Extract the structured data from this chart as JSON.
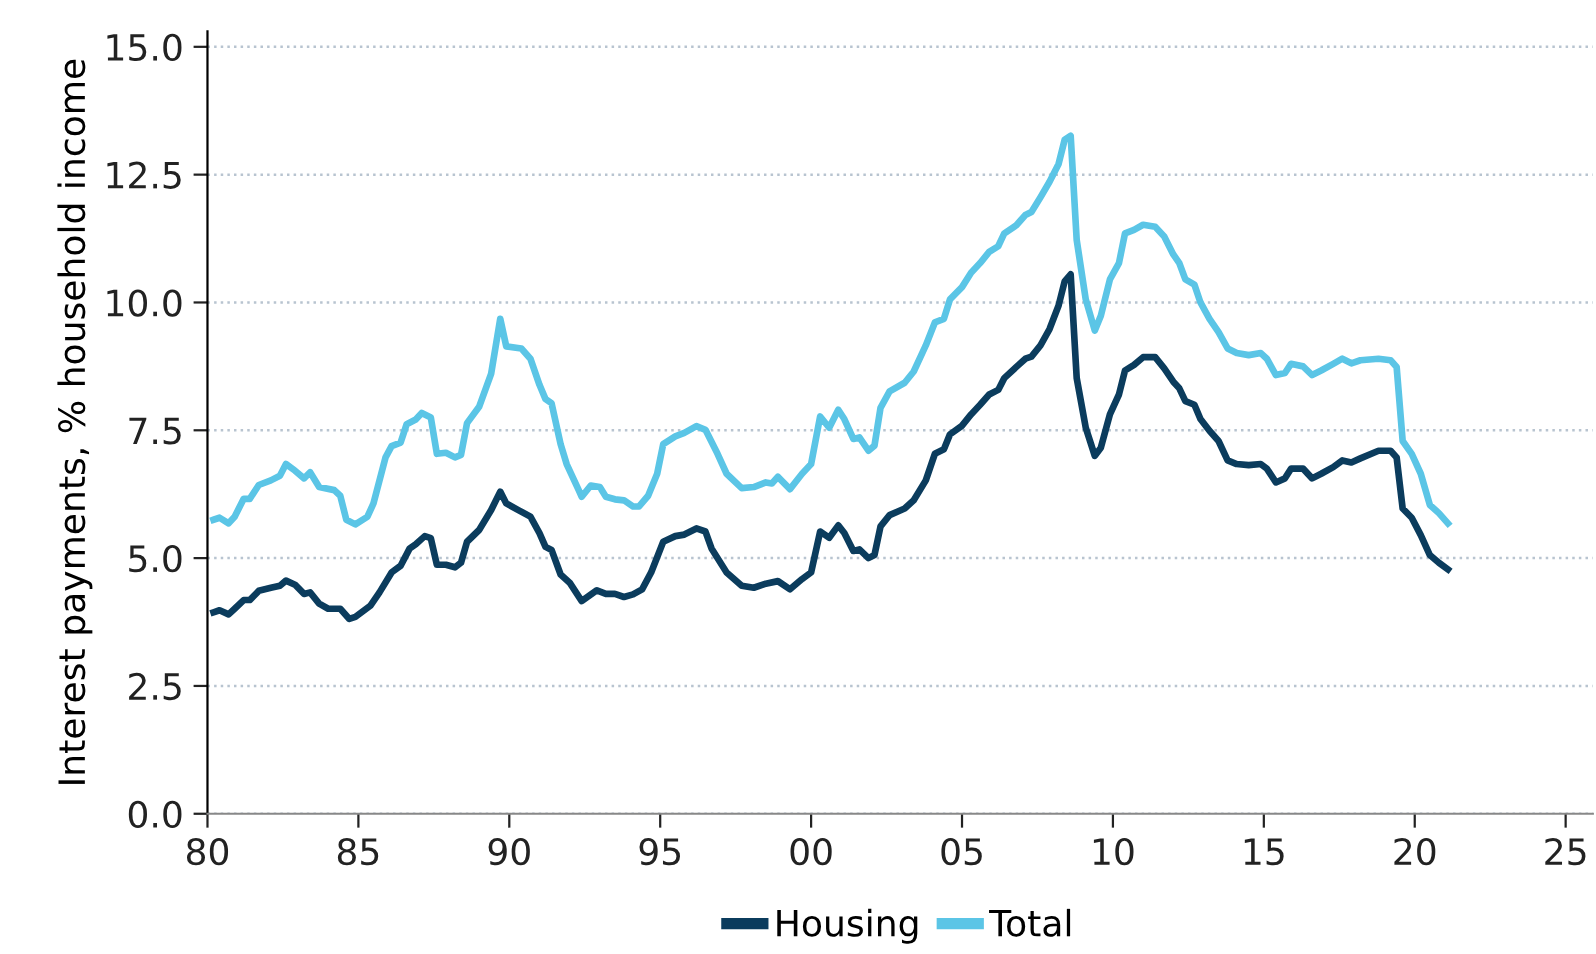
{
  "chart_data": {
    "type": "line",
    "ylabel": "Interest payments, % household income",
    "xlim": [
      1980,
      2025.9
    ],
    "ylim": [
      0,
      15.3
    ],
    "xticks": [
      {
        "value": 1980,
        "label": "80"
      },
      {
        "value": 1985,
        "label": "85"
      },
      {
        "value": 1990,
        "label": "90"
      },
      {
        "value": 1995,
        "label": "95"
      },
      {
        "value": 2000,
        "label": "00"
      },
      {
        "value": 2005,
        "label": "05"
      },
      {
        "value": 2010,
        "label": "10"
      },
      {
        "value": 2015,
        "label": "15"
      },
      {
        "value": 2020,
        "label": "20"
      },
      {
        "value": 2025,
        "label": "25"
      }
    ],
    "yticks": [
      {
        "value": 0,
        "label": "0.0"
      },
      {
        "value": 2.5,
        "label": "2.5"
      },
      {
        "value": 5,
        "label": "5.0"
      },
      {
        "value": 7.5,
        "label": "7.5"
      },
      {
        "value": 10,
        "label": "10.0"
      },
      {
        "value": 12.5,
        "label": "12.5"
      },
      {
        "value": 15,
        "label": "15.0"
      }
    ],
    "grid": "y",
    "legend": "bottom",
    "line_style": "solid",
    "marker": "none",
    "series": [
      {
        "name": "Housing",
        "color": "#0b3c5d",
        "x": [
          1980.2,
          1980.4,
          1980.7,
          1980.9,
          1981.2,
          1981.4,
          1981.7,
          1982.1,
          1982.4,
          1982.6,
          1982.9,
          1983.2,
          1983.4,
          1983.7,
          1984.0,
          1984.4,
          1984.7,
          1984.9,
          1985.4,
          1985.7,
          1986.1,
          1986.4,
          1986.7,
          1986.9,
          1987.2,
          1987.4,
          1987.6,
          1987.9,
          1988.2,
          1988.4,
          1988.6,
          1989.0,
          1989.4,
          1989.7,
          1989.9,
          1990.3,
          1990.7,
          1991.0,
          1991.2,
          1991.4,
          1991.7,
          1992.0,
          1992.4,
          1992.9,
          1993.2,
          1993.5,
          1993.8,
          1994.1,
          1994.4,
          1994.7,
          1995.1,
          1995.5,
          1995.8,
          1996.2,
          1996.5,
          1996.7,
          1997.2,
          1997.7,
          1998.1,
          1998.5,
          1998.9,
          1999.3,
          1999.7,
          2000.0,
          2000.3,
          2000.6,
          2000.9,
          2001.1,
          2001.4,
          2001.6,
          2001.9,
          2002.1,
          2002.3,
          2002.6,
          2003.1,
          2003.4,
          2003.8,
          2004.1,
          2004.4,
          2004.6,
          2005.0,
          2005.3,
          2005.6,
          2005.9,
          2006.2,
          2006.4,
          2006.8,
          2007.1,
          2007.3,
          2007.6,
          2007.9,
          2008.2,
          2008.4,
          2008.6,
          2008.8,
          2009.1,
          2009.4,
          2009.6,
          2009.9,
          2010.2,
          2010.4,
          2010.7,
          2011.0,
          2011.4,
          2011.7,
          2012.0,
          2012.2,
          2012.4,
          2012.7,
          2012.9,
          2013.2,
          2013.5,
          2013.8,
          2014.1,
          2014.5,
          2014.9,
          2015.1,
          2015.4,
          2015.7,
          2015.9,
          2016.3,
          2016.6,
          2016.9,
          2017.3,
          2017.6,
          2017.9,
          2018.2,
          2018.8,
          2019.2,
          2019.4,
          2019.6,
          2019.9,
          2020.2,
          2020.5,
          2020.8,
          2021.1
        ],
        "values": [
          3.94,
          3.98,
          3.9,
          4.01,
          4.18,
          4.18,
          4.36,
          4.42,
          4.46,
          4.56,
          4.48,
          4.3,
          4.33,
          4.11,
          4.01,
          4.01,
          3.81,
          3.85,
          4.07,
          4.33,
          4.72,
          4.85,
          5.19,
          5.27,
          5.43,
          5.39,
          4.87,
          4.87,
          4.82,
          4.91,
          5.32,
          5.55,
          5.94,
          6.3,
          6.07,
          5.94,
          5.81,
          5.49,
          5.22,
          5.16,
          4.68,
          4.52,
          4.16,
          4.37,
          4.3,
          4.3,
          4.24,
          4.29,
          4.39,
          4.72,
          5.32,
          5.43,
          5.46,
          5.58,
          5.52,
          5.19,
          4.72,
          4.46,
          4.42,
          4.5,
          4.55,
          4.39,
          4.59,
          4.72,
          5.52,
          5.4,
          5.64,
          5.49,
          5.14,
          5.17,
          5.0,
          5.06,
          5.62,
          5.84,
          5.97,
          6.13,
          6.52,
          7.04,
          7.13,
          7.42,
          7.59,
          7.81,
          8.0,
          8.2,
          8.29,
          8.52,
          8.74,
          8.9,
          8.94,
          9.16,
          9.48,
          9.94,
          10.41,
          10.55,
          8.52,
          7.55,
          7.0,
          7.16,
          7.81,
          8.2,
          8.67,
          8.78,
          8.93,
          8.93,
          8.71,
          8.45,
          8.32,
          8.07,
          8.0,
          7.72,
          7.49,
          7.29,
          6.91,
          6.84,
          6.82,
          6.84,
          6.75,
          6.48,
          6.56,
          6.75,
          6.75,
          6.56,
          6.65,
          6.78,
          6.91,
          6.87,
          6.95,
          7.1,
          7.1,
          6.97,
          5.97,
          5.79,
          5.45,
          5.06,
          4.91,
          4.78
        ]
      },
      {
        "name": "Total",
        "color": "#5bc5e6",
        "x": [
          1980.2,
          1980.4,
          1980.7,
          1980.9,
          1981.2,
          1981.4,
          1981.7,
          1982.1,
          1982.4,
          1982.6,
          1982.9,
          1983.2,
          1983.4,
          1983.7,
          1984.2,
          1984.4,
          1984.6,
          1984.9,
          1985.3,
          1985.5,
          1985.9,
          1986.1,
          1986.4,
          1986.6,
          1986.9,
          1987.1,
          1987.4,
          1987.6,
          1987.9,
          1988.2,
          1988.4,
          1988.6,
          1989.0,
          1989.4,
          1989.7,
          1989.9,
          1990.4,
          1990.7,
          1991.0,
          1991.2,
          1991.4,
          1991.7,
          1991.9,
          1992.3,
          1992.4,
          1992.7,
          1993.0,
          1993.2,
          1993.5,
          1993.8,
          1994.1,
          1994.3,
          1994.6,
          1994.9,
          1995.1,
          1995.5,
          1995.8,
          1996.2,
          1996.5,
          1996.9,
          1997.2,
          1997.7,
          1998.1,
          1998.5,
          1998.7,
          1998.9,
          1999.3,
          1999.7,
          2000.0,
          2000.3,
          2000.6,
          2000.9,
          2001.1,
          2001.4,
          2001.6,
          2001.9,
          2002.1,
          2002.3,
          2002.6,
          2003.1,
          2003.4,
          2003.8,
          2004.1,
          2004.4,
          2004.6,
          2005.0,
          2005.3,
          2005.6,
          2005.9,
          2006.2,
          2006.4,
          2006.8,
          2007.1,
          2007.3,
          2007.6,
          2007.9,
          2008.2,
          2008.4,
          2008.6,
          2008.8,
          2009.1,
          2009.4,
          2009.6,
          2009.9,
          2010.2,
          2010.4,
          2010.7,
          2011.0,
          2011.4,
          2011.7,
          2012.0,
          2012.2,
          2012.4,
          2012.7,
          2012.9,
          2013.2,
          2013.5,
          2013.8,
          2014.1,
          2014.5,
          2014.9,
          2015.1,
          2015.4,
          2015.7,
          2015.9,
          2016.3,
          2016.6,
          2016.9,
          2017.3,
          2017.6,
          2017.9,
          2018.2,
          2018.8,
          2019.2,
          2019.4,
          2019.6,
          2019.9,
          2020.2,
          2020.5,
          2020.8,
          2021.1
        ],
        "values": [
          5.75,
          5.79,
          5.68,
          5.81,
          6.16,
          6.16,
          6.43,
          6.52,
          6.61,
          6.84,
          6.71,
          6.56,
          6.68,
          6.39,
          6.33,
          6.22,
          5.75,
          5.66,
          5.81,
          6.07,
          6.97,
          7.19,
          7.26,
          7.62,
          7.71,
          7.84,
          7.75,
          7.04,
          7.06,
          6.97,
          7.02,
          7.64,
          7.96,
          8.61,
          9.68,
          9.14,
          9.1,
          8.9,
          8.39,
          8.11,
          8.03,
          7.23,
          6.84,
          6.33,
          6.2,
          6.42,
          6.39,
          6.2,
          6.15,
          6.13,
          6.01,
          6.01,
          6.22,
          6.65,
          7.23,
          7.38,
          7.45,
          7.58,
          7.51,
          7.04,
          6.65,
          6.37,
          6.39,
          6.48,
          6.46,
          6.59,
          6.35,
          6.65,
          6.84,
          7.77,
          7.55,
          7.9,
          7.72,
          7.33,
          7.36,
          7.1,
          7.2,
          7.94,
          8.26,
          8.43,
          8.65,
          9.16,
          9.61,
          9.68,
          10.06,
          10.3,
          10.58,
          10.77,
          10.99,
          11.1,
          11.35,
          11.51,
          11.71,
          11.77,
          12.06,
          12.36,
          12.71,
          13.18,
          13.26,
          11.22,
          10.06,
          9.45,
          9.74,
          10.45,
          10.77,
          11.35,
          11.42,
          11.52,
          11.48,
          11.29,
          10.94,
          10.77,
          10.45,
          10.35,
          10.0,
          9.68,
          9.42,
          9.1,
          9.01,
          8.97,
          9.01,
          8.9,
          8.58,
          8.62,
          8.8,
          8.75,
          8.58,
          8.67,
          8.8,
          8.9,
          8.81,
          8.87,
          8.9,
          8.87,
          8.74,
          7.29,
          7.04,
          6.65,
          6.04,
          5.88,
          5.68
        ]
      }
    ]
  }
}
